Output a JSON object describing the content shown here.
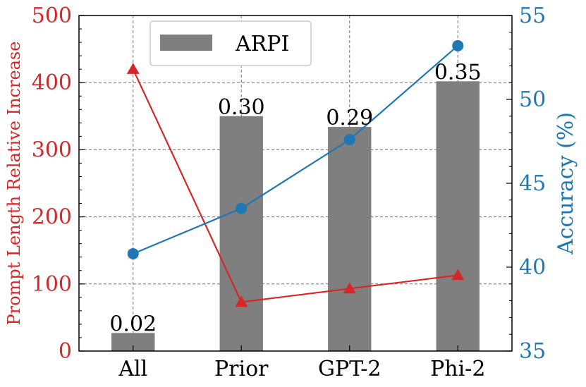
{
  "chart_data": {
    "type": "bar",
    "categories": [
      "All",
      "Prior",
      "GPT-2",
      "Phi-2"
    ],
    "bar_series": {
      "name": "ARPI",
      "axis": "left",
      "values": [
        27,
        350,
        334,
        402
      ],
      "data_labels": [
        "0.02",
        "0.30",
        "0.29",
        "0.35"
      ],
      "color": "#7f7f7f"
    },
    "line_series": [
      {
        "axis": "left",
        "marker": "triangle",
        "values": [
          420,
          73,
          93,
          113
        ],
        "color": "#d62728"
      },
      {
        "axis": "right",
        "marker": "circle",
        "values": [
          40.8,
          43.5,
          47.6,
          53.2
        ],
        "color": "#1f77b4"
      }
    ],
    "y_left": {
      "label": "Prompt Length Relative Increase",
      "range": [
        0,
        500
      ],
      "ticks": [
        "0",
        "100",
        "200",
        "300",
        "400",
        "500"
      ],
      "color": "#d62728"
    },
    "y_right": {
      "label": "Accuracy (%)",
      "range": [
        35,
        55
      ],
      "ticks": [
        "35",
        "40",
        "45",
        "50",
        "55"
      ],
      "color": "#1f77b4"
    },
    "grid": true,
    "legend": {
      "placement": "top-left",
      "entries": [
        "ARPI"
      ]
    }
  }
}
